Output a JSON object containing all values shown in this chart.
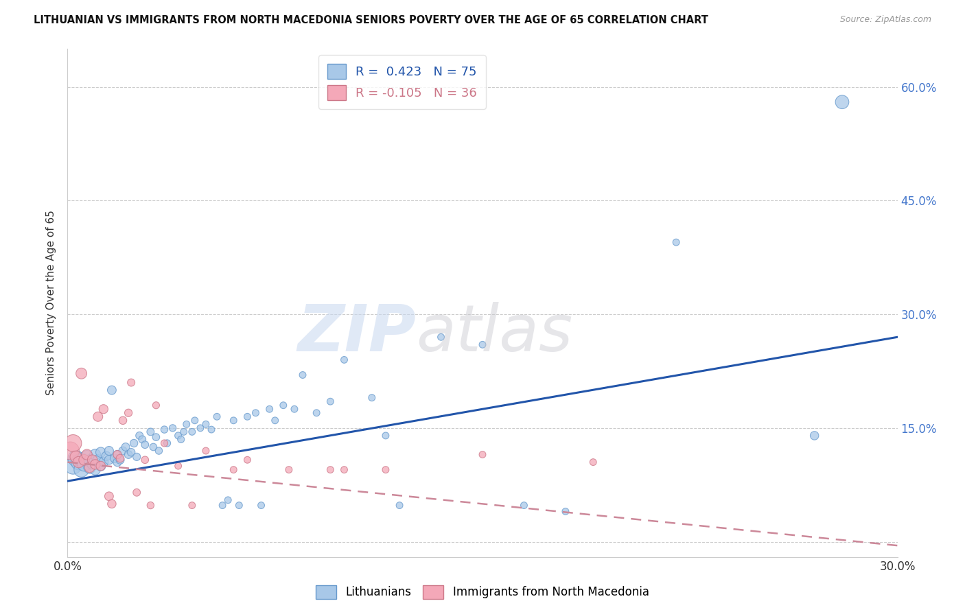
{
  "title": "LITHUANIAN VS IMMIGRANTS FROM NORTH MACEDONIA SENIORS POVERTY OVER THE AGE OF 65 CORRELATION CHART",
  "source": "Source: ZipAtlas.com",
  "ylabel": "Seniors Poverty Over the Age of 65",
  "xmin": 0.0,
  "xmax": 0.3,
  "ymin": -0.02,
  "ymax": 0.65,
  "yticks": [
    0.0,
    0.15,
    0.3,
    0.45,
    0.6
  ],
  "ytick_labels_right": [
    "",
    "15.0%",
    "30.0%",
    "45.0%",
    "60.0%"
  ],
  "xtick_left_label": "0.0%",
  "xtick_right_label": "30.0%",
  "blue_R": 0.423,
  "blue_N": 75,
  "pink_R": -0.105,
  "pink_N": 36,
  "blue_color": "#a8c8e8",
  "pink_color": "#f4a8b8",
  "blue_edge_color": "#6699cc",
  "pink_edge_color": "#cc7788",
  "blue_line_color": "#2255aa",
  "pink_line_color": "#cc8899",
  "watermark_zip": "ZIP",
  "watermark_atlas": "atlas",
  "blue_scatter_x": [
    0.002,
    0.003,
    0.004,
    0.005,
    0.005,
    0.006,
    0.007,
    0.008,
    0.008,
    0.009,
    0.01,
    0.01,
    0.011,
    0.012,
    0.012,
    0.013,
    0.014,
    0.015,
    0.015,
    0.016,
    0.017,
    0.018,
    0.018,
    0.019,
    0.02,
    0.021,
    0.022,
    0.023,
    0.024,
    0.025,
    0.026,
    0.027,
    0.028,
    0.03,
    0.031,
    0.032,
    0.033,
    0.035,
    0.036,
    0.038,
    0.04,
    0.041,
    0.042,
    0.043,
    0.045,
    0.046,
    0.048,
    0.05,
    0.052,
    0.054,
    0.056,
    0.058,
    0.06,
    0.062,
    0.065,
    0.068,
    0.07,
    0.073,
    0.075,
    0.078,
    0.082,
    0.085,
    0.09,
    0.095,
    0.1,
    0.11,
    0.115,
    0.12,
    0.135,
    0.15,
    0.165,
    0.18,
    0.22,
    0.27,
    0.28
  ],
  "blue_scatter_y": [
    0.1,
    0.11,
    0.105,
    0.095,
    0.108,
    0.102,
    0.112,
    0.098,
    0.107,
    0.103,
    0.115,
    0.095,
    0.108,
    0.118,
    0.1,
    0.105,
    0.113,
    0.108,
    0.12,
    0.2,
    0.11,
    0.115,
    0.105,
    0.108,
    0.12,
    0.125,
    0.115,
    0.118,
    0.13,
    0.112,
    0.14,
    0.135,
    0.128,
    0.145,
    0.125,
    0.138,
    0.12,
    0.148,
    0.13,
    0.15,
    0.14,
    0.135,
    0.145,
    0.155,
    0.145,
    0.16,
    0.15,
    0.155,
    0.148,
    0.165,
    0.048,
    0.055,
    0.16,
    0.048,
    0.165,
    0.17,
    0.048,
    0.175,
    0.16,
    0.18,
    0.175,
    0.22,
    0.17,
    0.185,
    0.24,
    0.19,
    0.14,
    0.048,
    0.27,
    0.26,
    0.048,
    0.04,
    0.395,
    0.14,
    0.58
  ],
  "blue_scatter_sizes": [
    300,
    280,
    260,
    240,
    220,
    200,
    180,
    160,
    150,
    140,
    130,
    120,
    115,
    110,
    105,
    100,
    95,
    90,
    88,
    85,
    82,
    80,
    78,
    76,
    74,
    72,
    70,
    68,
    66,
    64,
    62,
    60,
    60,
    60,
    58,
    58,
    56,
    56,
    54,
    54,
    52,
    52,
    50,
    50,
    50,
    50,
    50,
    50,
    50,
    50,
    50,
    50,
    50,
    50,
    50,
    50,
    50,
    50,
    50,
    50,
    50,
    50,
    50,
    50,
    50,
    50,
    50,
    50,
    50,
    50,
    50,
    50,
    50,
    80,
    200
  ],
  "pink_scatter_x": [
    0.001,
    0.002,
    0.003,
    0.004,
    0.005,
    0.006,
    0.007,
    0.008,
    0.009,
    0.01,
    0.011,
    0.012,
    0.013,
    0.015,
    0.016,
    0.018,
    0.019,
    0.02,
    0.022,
    0.023,
    0.025,
    0.028,
    0.03,
    0.032,
    0.035,
    0.04,
    0.045,
    0.05,
    0.06,
    0.065,
    0.08,
    0.095,
    0.1,
    0.115,
    0.15,
    0.19
  ],
  "pink_scatter_y": [
    0.12,
    0.13,
    0.112,
    0.105,
    0.222,
    0.108,
    0.115,
    0.098,
    0.108,
    0.102,
    0.165,
    0.1,
    0.175,
    0.06,
    0.05,
    0.115,
    0.11,
    0.16,
    0.17,
    0.21,
    0.065,
    0.108,
    0.048,
    0.18,
    0.13,
    0.1,
    0.048,
    0.12,
    0.095,
    0.108,
    0.095,
    0.095,
    0.095,
    0.095,
    0.115,
    0.105
  ],
  "pink_scatter_sizes": [
    350,
    320,
    150,
    140,
    130,
    125,
    120,
    115,
    110,
    105,
    100,
    95,
    90,
    85,
    80,
    75,
    70,
    68,
    65,
    62,
    60,
    58,
    55,
    53,
    52,
    50,
    50,
    50,
    50,
    50,
    50,
    50,
    50,
    50,
    50,
    50
  ],
  "blue_line_x": [
    0.0,
    0.3
  ],
  "blue_line_y": [
    0.08,
    0.27
  ],
  "pink_line_x": [
    0.0,
    0.3
  ],
  "pink_line_y": [
    0.105,
    -0.005
  ]
}
